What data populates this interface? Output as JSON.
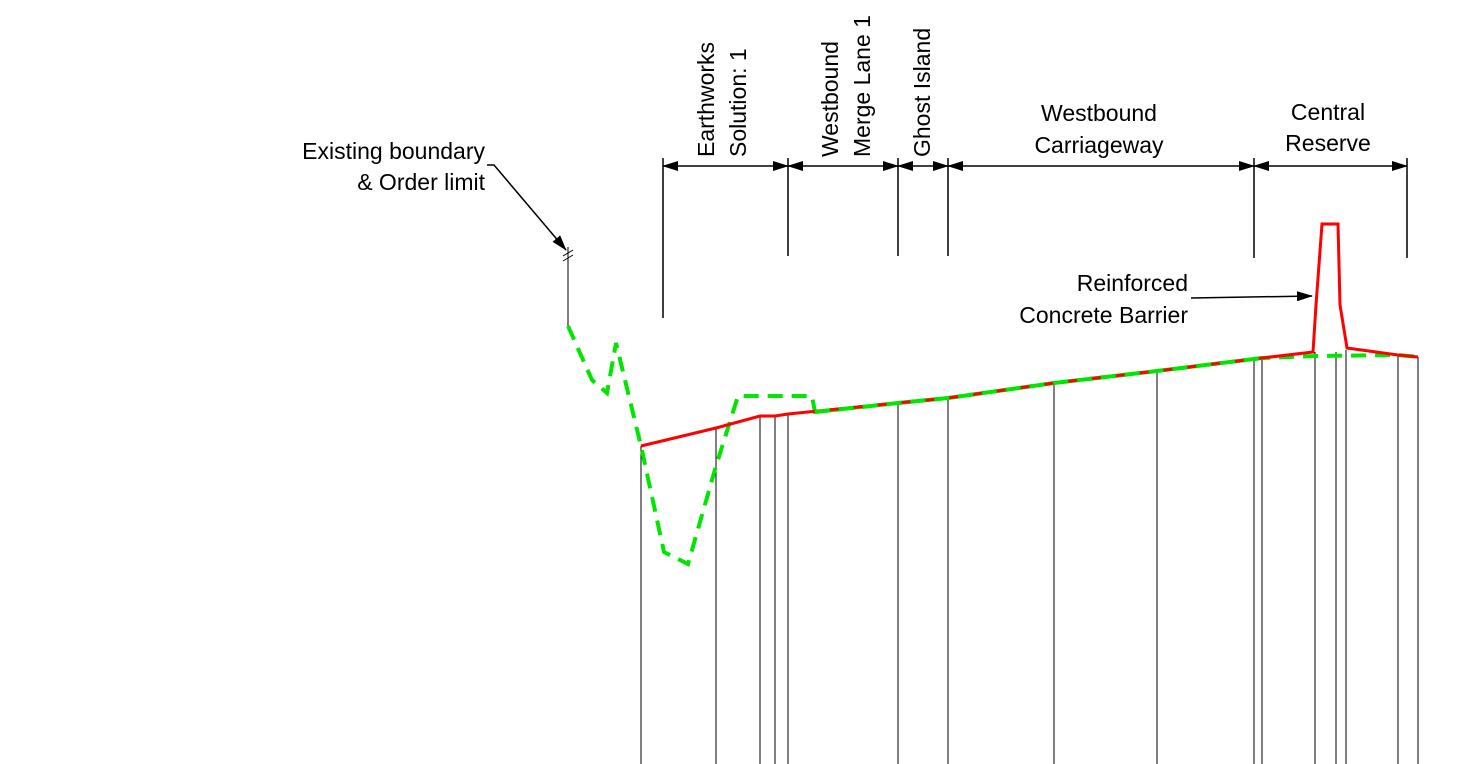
{
  "section_labels": {
    "earthworks_line1": "Earthworks",
    "earthworks_line2": "Solution: 1",
    "merge_line1": "Westbound",
    "merge_line2": "Merge Lane 1",
    "ghost_island": "Ghost Island",
    "carriageway_line1": "Westbound",
    "carriageway_line2": "Carriageway",
    "central_reserve_line1": "Central",
    "central_reserve_line2": "Reserve"
  },
  "annotations": {
    "boundary_line1": "Existing boundary",
    "boundary_line2": "& Order limit",
    "barrier_line1": "Reinforced",
    "barrier_line2": "Concrete Barrier"
  },
  "colors": {
    "proposed_profile": "#ff0000",
    "existing_profile": "#00e600",
    "linework": "#000000"
  }
}
